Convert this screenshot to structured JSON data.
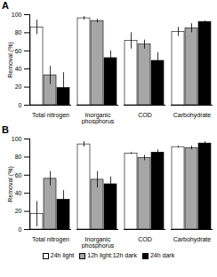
{
  "chart_data": [
    {
      "type": "bar",
      "title": "A",
      "y_label": "Removal (%)",
      "categories": [
        "Total nitrogen",
        "Inorganic phosphorus",
        "COD",
        "Carbohydrate"
      ],
      "ylim": [
        0,
        100
      ],
      "yticks": [
        0,
        20,
        40,
        60,
        80,
        100
      ],
      "series": [
        {
          "name": "24h light",
          "color": "#ffffff",
          "values": [
            86,
            96,
            71,
            81
          ],
          "errors": [
            8,
            2,
            9,
            5
          ]
        },
        {
          "name": "12h light:12h dark",
          "color": "#a6a6a6",
          "values": [
            33,
            93,
            67,
            85
          ],
          "errors": [
            10,
            2,
            5,
            5
          ]
        },
        {
          "name": "24h dark",
          "color": "#000000",
          "values": [
            19,
            52,
            49,
            92
          ],
          "errors": [
            17,
            8,
            9,
            1
          ]
        }
      ]
    },
    {
      "type": "bar",
      "title": "B",
      "y_label": "Removal (%)",
      "categories": [
        "Total nitrogen",
        "Inorganic phosphorus",
        "COD",
        "Carbohydrate"
      ],
      "ylim": [
        0,
        100
      ],
      "yticks": [
        0,
        20,
        40,
        60,
        80,
        100
      ],
      "legend": "bottom",
      "series": [
        {
          "name": "24h light",
          "color": "#ffffff",
          "values": [
            17,
            94,
            84,
            91
          ],
          "errors": [
            14,
            3,
            1,
            1
          ]
        },
        {
          "name": "12h light:12h dark",
          "color": "#a6a6a6",
          "values": [
            56,
            55,
            79,
            90
          ],
          "errors": [
            8,
            9,
            3,
            2
          ]
        },
        {
          "name": "24h dark",
          "color": "#000000",
          "values": [
            33,
            50,
            85,
            95
          ],
          "errors": [
            10,
            8,
            3,
            2
          ]
        }
      ]
    }
  ]
}
